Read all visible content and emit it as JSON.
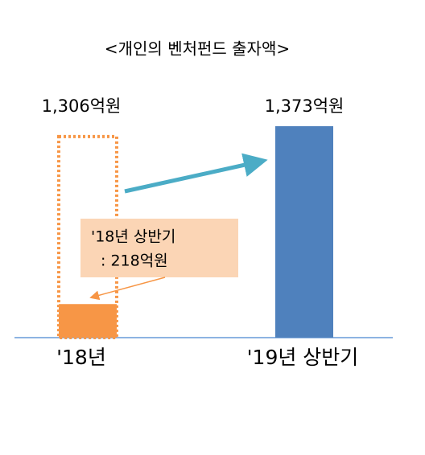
{
  "chart_data": {
    "type": "bar",
    "title": "<개인의 벤처펀드 출자액>",
    "categories": [
      "'18년",
      "'19년 상반기"
    ],
    "values": [
      1306,
      1373
    ],
    "value_labels": [
      "1,306억원",
      "1,373억원"
    ],
    "colors": [
      "#f79646",
      "#4f81bd"
    ],
    "styles": [
      "dotted",
      "solid"
    ],
    "annotation": {
      "lines": [
        "'18년 상반기",
        ": 218억원"
      ],
      "value": 218,
      "color": "#f79646",
      "box_color": "#fbd5b5"
    }
  }
}
